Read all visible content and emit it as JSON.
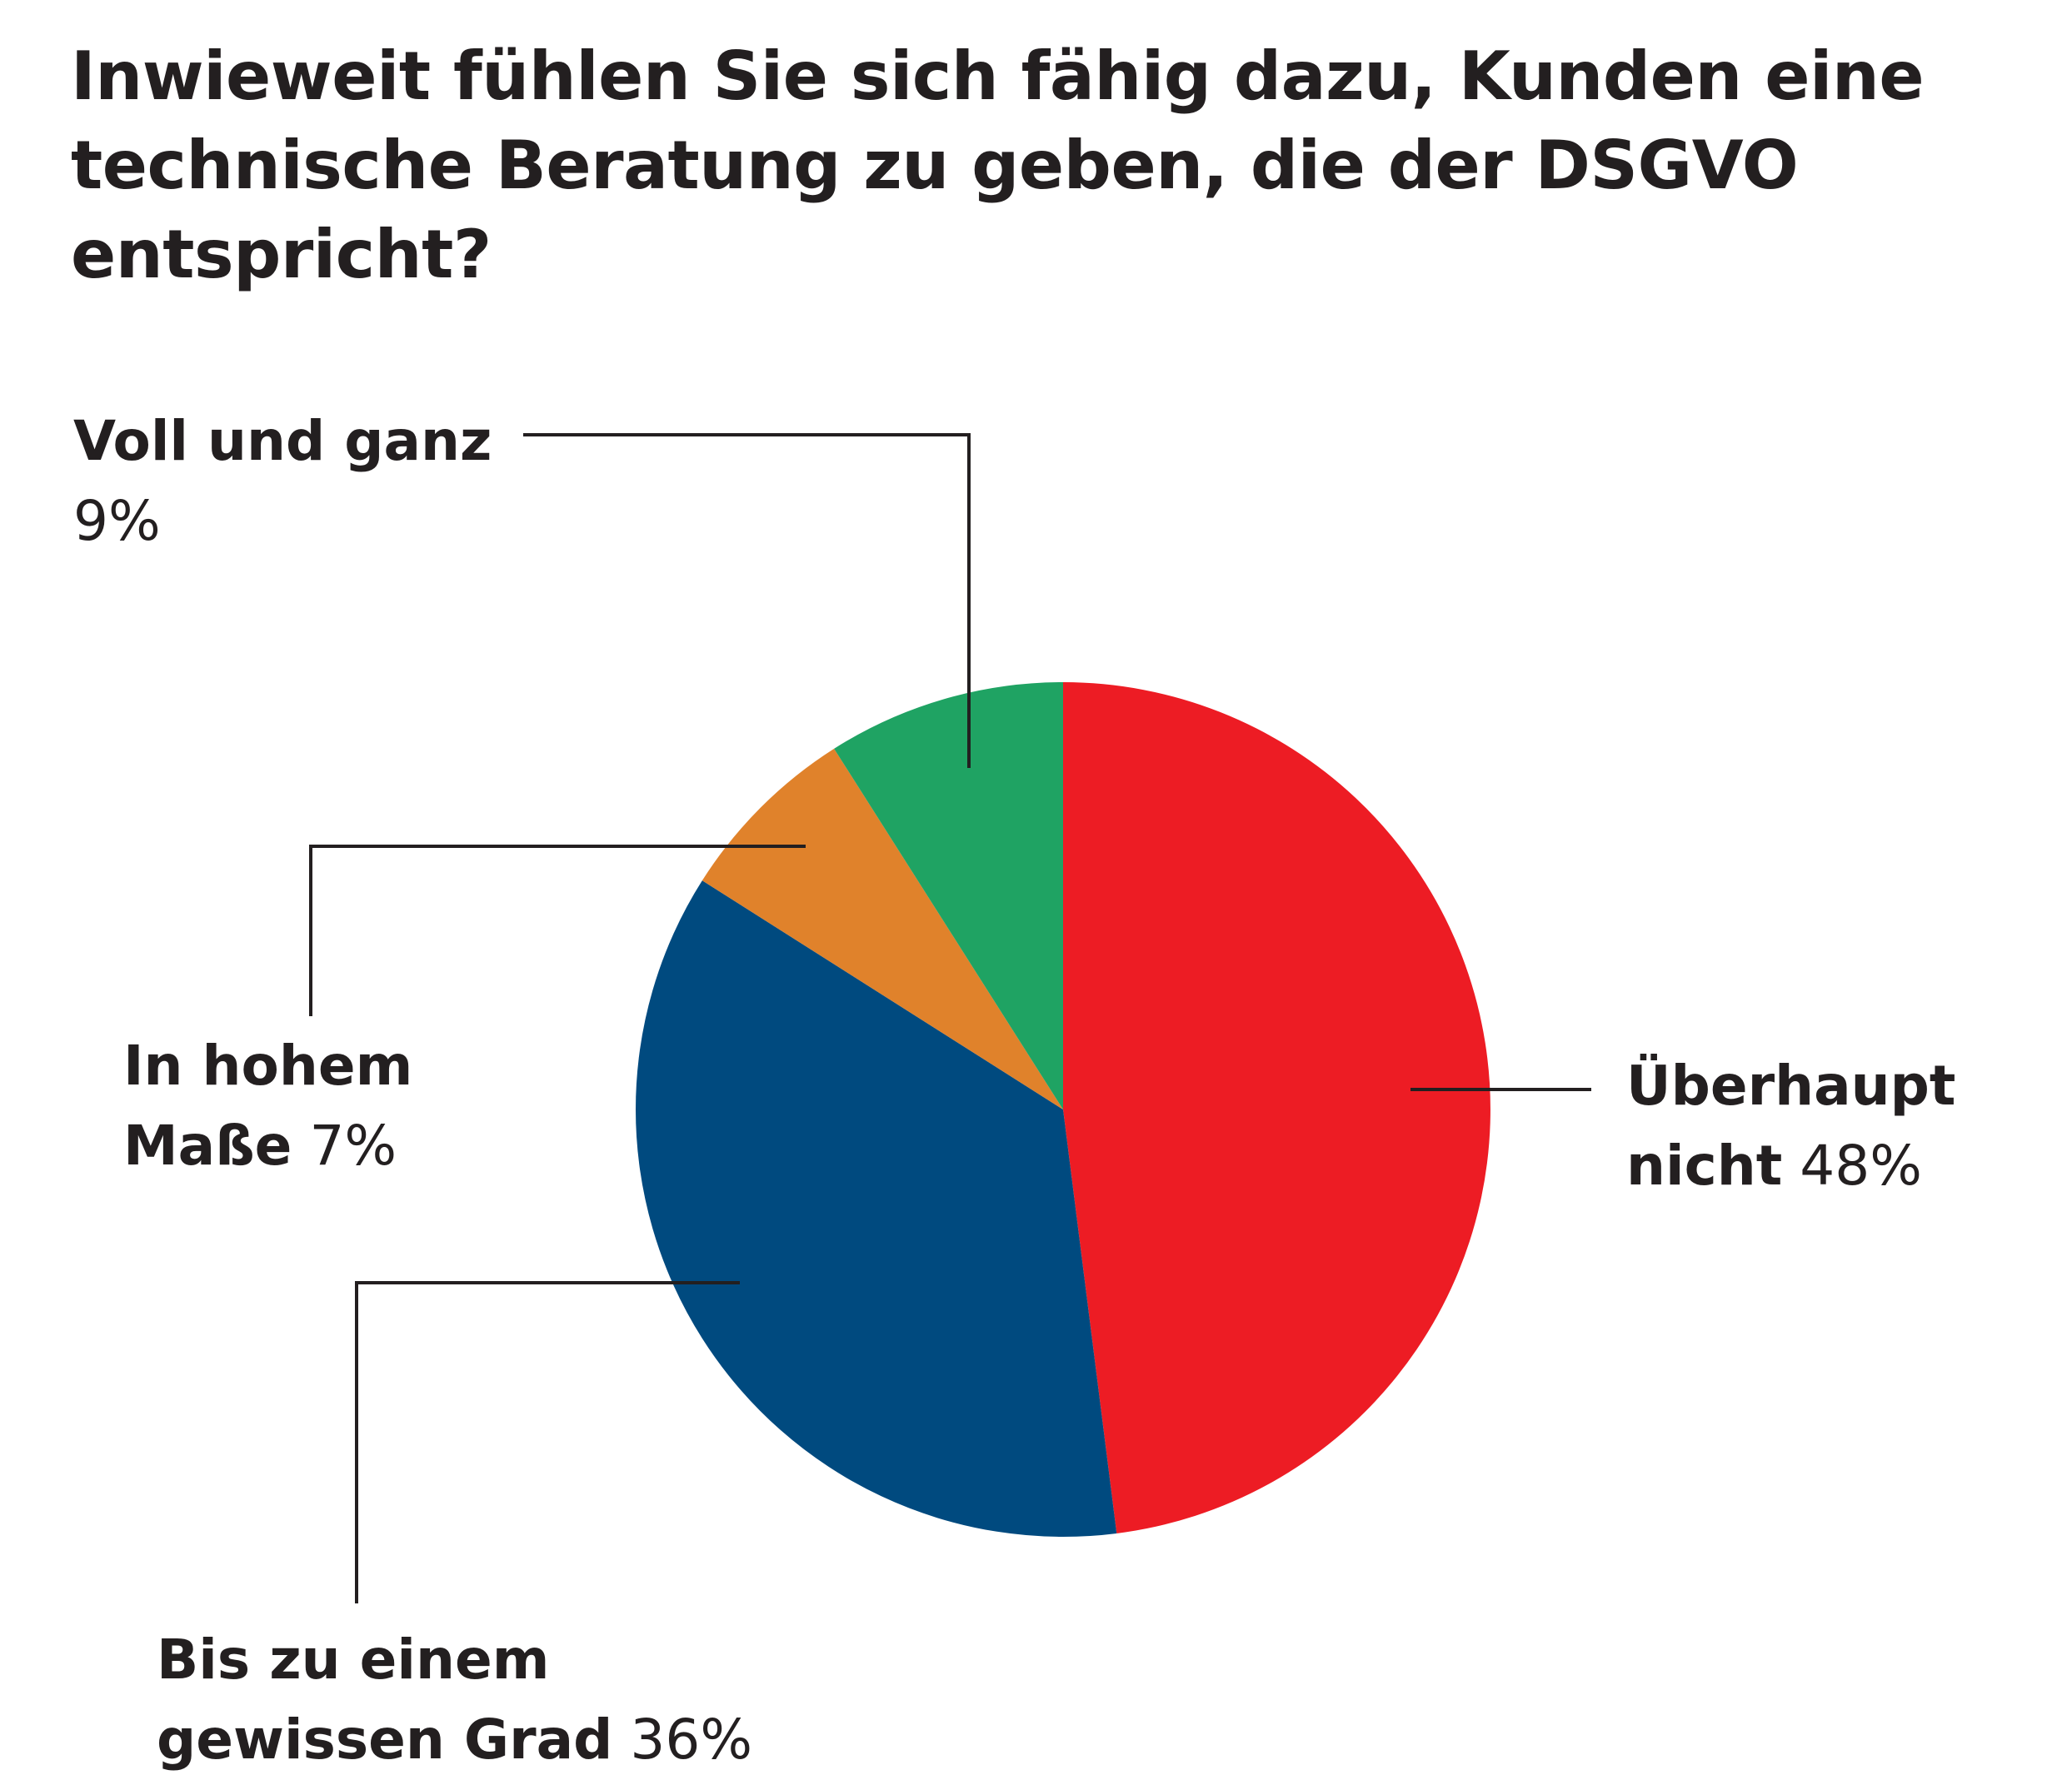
{
  "chart_data": {
    "type": "pie",
    "title": "Inwieweit fühlen Sie sich fähig dazu, Kunden eine technische Beratung zu geben, die der DSGVO entspricht?",
    "slices": [
      {
        "label": "Überhaupt nicht",
        "value": 48,
        "value_label": "48%",
        "color": "#ed1c24"
      },
      {
        "label": "Bis zu einem gewissen Grad",
        "value": 36,
        "value_label": "36%",
        "color": "#004a7f"
      },
      {
        "label": "In hohem Maße",
        "value": 7,
        "value_label": "7%",
        "color": "#e0822b"
      },
      {
        "label": "Voll und ganz",
        "value": 9,
        "value_label": "9%",
        "color": "#1fa363"
      }
    ],
    "start_angle": "12 o'clock",
    "direction": "clockwise",
    "legend": "callout labels"
  }
}
